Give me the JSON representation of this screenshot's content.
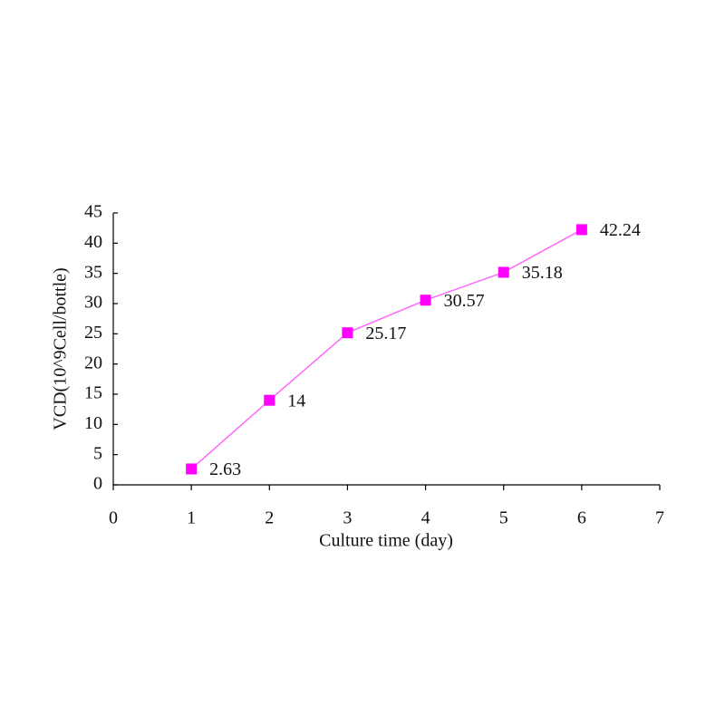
{
  "chart_data": {
    "type": "line",
    "x_label": "Culture time (day)",
    "y_label": "VCD(10^9Cell/bottle)",
    "x": [
      1,
      2,
      3,
      4,
      5,
      6
    ],
    "series": [
      {
        "name": "VCD",
        "color": "#ff00ff",
        "values": [
          2.63,
          14,
          25.17,
          30.57,
          35.18,
          42.24
        ]
      }
    ],
    "xlim": [
      0,
      7
    ],
    "xticks": [
      0,
      1,
      2,
      3,
      4,
      5,
      6,
      7
    ],
    "ylim": [
      0,
      45
    ],
    "yticks": [
      0,
      5,
      10,
      15,
      20,
      25,
      30,
      35,
      40,
      45
    ],
    "data_labels": true
  }
}
